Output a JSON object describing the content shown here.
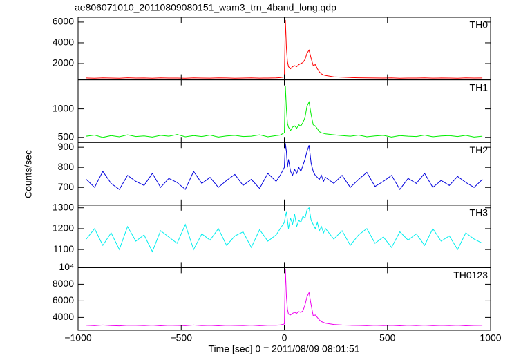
{
  "chart_data": {
    "type": "line",
    "title": "ae806071010_20110809080151_wam3_trn_4band_long.qdp",
    "xlabel": "Time [sec] 0 = 2011/08/09 08:01:51",
    "ylabel": "Counts/sec",
    "xlim": [
      -1000,
      1000
    ],
    "xticks": [
      {
        "value": -1000,
        "label": "−1000"
      },
      {
        "value": -500,
        "label": "−500"
      },
      0,
      500,
      1000
    ],
    "x": [
      -960,
      -920,
      -880,
      -840,
      -800,
      -760,
      -720,
      -680,
      -640,
      -600,
      -560,
      -520,
      -480,
      -440,
      -400,
      -360,
      -320,
      -280,
      -240,
      -200,
      -160,
      -120,
      -80,
      -40,
      -20,
      0,
      5,
      10,
      15,
      20,
      30,
      40,
      50,
      60,
      70,
      80,
      90,
      100,
      110,
      120,
      130,
      140,
      150,
      160,
      170,
      180,
      190,
      200,
      240,
      280,
      320,
      360,
      400,
      440,
      480,
      520,
      560,
      600,
      640,
      680,
      720,
      760,
      800,
      840,
      880,
      920,
      960
    ],
    "series": [
      {
        "name": "TH0",
        "color": "#ff0000",
        "ylim": [
          430,
          6460
        ],
        "yticks": [
          2000,
          4000,
          6000
        ],
        "values": [
          610,
          590,
          620,
          600,
          580,
          630,
          600,
          610,
          590,
          620,
          600,
          605,
          585,
          615,
          600,
          595,
          620,
          610,
          590,
          600,
          615,
          595,
          605,
          620,
          640,
          700,
          6200,
          3500,
          2200,
          1700,
          1500,
          1700,
          1800,
          1700,
          1900,
          2000,
          2100,
          2400,
          3000,
          3300,
          2500,
          1800,
          1900,
          1500,
          1200,
          1000,
          900,
          850,
          720,
          680,
          650,
          630,
          620,
          610,
          600,
          615,
          590,
          605,
          600,
          620,
          595,
          610,
          600,
          590,
          615,
          600,
          610
        ]
      },
      {
        "name": "TH1",
        "color": "#00ee00",
        "ylim": [
          410,
          1510
        ],
        "yticks": [
          500,
          1000
        ],
        "values": [
          520,
          540,
          500,
          530,
          510,
          545,
          515,
          525,
          505,
          535,
          520,
          550,
          510,
          530,
          515,
          540,
          505,
          525,
          535,
          515,
          520,
          545,
          510,
          530,
          540,
          580,
          1400,
          1000,
          750,
          680,
          620,
          680,
          700,
          660,
          720,
          700,
          760,
          850,
          1050,
          1120,
          900,
          720,
          700,
          650,
          600,
          580,
          570,
          560,
          545,
          530,
          520,
          540,
          510,
          525,
          535,
          505,
          530,
          520,
          515,
          540,
          510,
          525,
          530,
          515,
          535,
          505,
          520
        ]
      },
      {
        "name": "TH2",
        "color": "#0000dd",
        "ylim": [
          612,
          924
        ],
        "yticks": [
          700,
          800,
          900
        ],
        "values": [
          740,
          700,
          780,
          720,
          690,
          760,
          730,
          710,
          770,
          700,
          745,
          725,
          690,
          780,
          720,
          750,
          700,
          735,
          765,
          710,
          740,
          695,
          770,
          730,
          760,
          800,
          920,
          880,
          800,
          840,
          780,
          760,
          790,
          770,
          800,
          780,
          810,
          840,
          880,
          910,
          820,
          780,
          760,
          750,
          740,
          760,
          730,
          750,
          720,
          760,
          700,
          740,
          775,
          705,
          730,
          760,
          690,
          745,
          720,
          770,
          700,
          735,
          710,
          755,
          725,
          700,
          740
        ]
      },
      {
        "name": "TH3",
        "color": "#00eeee",
        "ylim": [
          1013,
          1313
        ],
        "yticks": [
          1100,
          1200,
          1300
        ],
        "values": [
          1150,
          1200,
          1120,
          1180,
          1100,
          1210,
          1140,
          1170,
          1090,
          1190,
          1160,
          1130,
          1220,
          1100,
          1175,
          1145,
          1200,
          1120,
          1165,
          1185,
          1110,
          1195,
          1140,
          1170,
          1200,
          1230,
          1260,
          1280,
          1240,
          1200,
          1250,
          1220,
          1270,
          1210,
          1240,
          1230,
          1260,
          1250,
          1290,
          1300,
          1240,
          1220,
          1200,
          1230,
          1190,
          1210,
          1180,
          1200,
          1150,
          1190,
          1120,
          1170,
          1200,
          1130,
          1160,
          1110,
          1185,
          1145,
          1175,
          1120,
          1200,
          1140,
          1165,
          1100,
          1180,
          1150,
          1130
        ]
      },
      {
        "name": "TH0123",
        "color": "#ee00ee",
        "ylim": [
          2450,
          10000
        ],
        "yticks": [
          4000,
          6000,
          8000,
          {
            "value": 10000,
            "label": "10⁴"
          }
        ],
        "values": [
          3050,
          3000,
          3080,
          3020,
          2980,
          3060,
          3040,
          3010,
          3070,
          2990,
          3050,
          3030,
          3000,
          3080,
          3020,
          3040,
          2990,
          3060,
          3030,
          3010,
          3070,
          3000,
          3050,
          3060,
          3100,
          3200,
          9800,
          6500,
          5000,
          4400,
          4300,
          4500,
          4600,
          4500,
          4700,
          4600,
          4800,
          5500,
          6500,
          7000,
          5500,
          4200,
          4300,
          4000,
          3700,
          3500,
          3400,
          3300,
          3150,
          3080,
          3050,
          3030,
          3000,
          3060,
          3020,
          3040,
          2990,
          3050,
          3010,
          3070,
          3000,
          3040,
          3020,
          3060,
          2990,
          3030,
          3040
        ]
      }
    ]
  }
}
